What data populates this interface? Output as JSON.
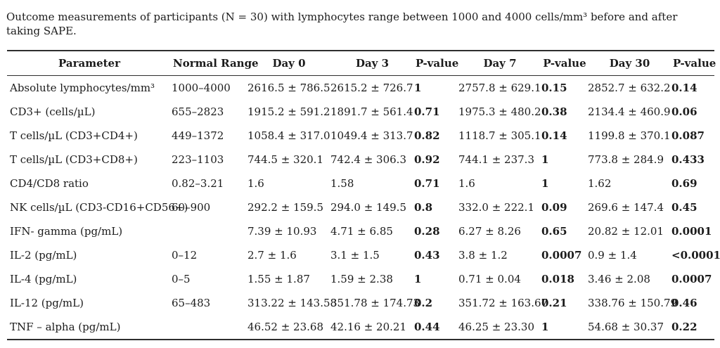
{
  "caption": "Outcome measurements of participants (N = 30) with lymphocytes range between 1000 and 4000 cells/mm³ before and after taking SAPE.",
  "table": {
    "headers": [
      "Parameter",
      "Normal Range",
      "Day 0",
      "Day 3",
      "P-value",
      "Day 7",
      "P-value",
      "Day 30",
      "P-value"
    ],
    "bold_value_columns": [
      4,
      6,
      8
    ],
    "rows": [
      [
        "Absolute lymphocytes/mm³",
        "1000–4000",
        "2616.5 ± 786.5",
        "2615.2 ± 726.7",
        "1",
        "2757.8 ± 629.1",
        "0.15",
        "2852.7 ± 632.2",
        "0.14"
      ],
      [
        "CD3+ (cells/µL)",
        "655–2823",
        "1915.2 ± 591.2",
        "1891.7 ± 561.4",
        "0.71",
        "1975.3 ± 480.2",
        "0.38",
        "2134.4 ± 460.9",
        "0.06"
      ],
      [
        "T cells/µL (CD3+CD4+)",
        "449–1372",
        "1058.4 ± 317.0",
        "1049.4 ± 313.7",
        "0.82",
        "1118.7 ± 305.1",
        "0.14",
        "1199.8 ± 370.1",
        "0.087"
      ],
      [
        "T cells/µL (CD3+CD8+)",
        "223–1103",
        "744.5 ± 320.1",
        "742.4 ± 306.3",
        "0.92",
        "744.1 ± 237.3",
        "1",
        "773.8 ± 284.9",
        "0.433"
      ],
      [
        "CD4/CD8 ratio",
        "0.82–3.21",
        "1.6",
        "1.58",
        "0.71",
        "1.6",
        "1",
        "1.62",
        "0.69"
      ],
      [
        "NK cells/µL (CD3-CD16+CD56+)",
        "60–900",
        "292.2 ± 159.5",
        "294.0 ± 149.5",
        "0.8",
        "332.0 ± 222.1",
        "0.09",
        "269.6 ± 147.4",
        "0.45"
      ],
      [
        "IFN- gamma (pg/mL)",
        "",
        "7.39 ± 10.93",
        "4.71 ± 6.85",
        "0.28",
        "6.27 ± 8.26",
        "0.65",
        "20.82 ± 12.01",
        "0.0001"
      ],
      [
        "IL-2 (pg/mL)",
        "0–12",
        "2.7 ± 1.6",
        "3.1 ± 1.5",
        "0.43",
        "3.8 ± 1.2",
        "0.0007",
        "0.9 ± 1.4",
        "<0.0001"
      ],
      [
        "IL-4 (pg/mL)",
        "0–5",
        "1.55 ± 1.87",
        "1.59 ± 2.38",
        "1",
        "0.71 ± 0.04",
        "0.018",
        "3.46 ± 2.08",
        "0.0007"
      ],
      [
        "IL-12 (pg/mL)",
        "65–483",
        "313.22 ± 143.58",
        "351.78 ± 174.73",
        "0.2",
        "351.72 ± 163.67",
        "0.21",
        "338.76 ± 150.79",
        "0.46"
      ],
      [
        "TNF – alpha (pg/mL)",
        "",
        "46.52 ± 23.68",
        "42.16 ± 20.21",
        "0.44",
        "46.25 ± 23.30",
        "1",
        "54.68 ± 30.37",
        "0.22"
      ]
    ]
  }
}
